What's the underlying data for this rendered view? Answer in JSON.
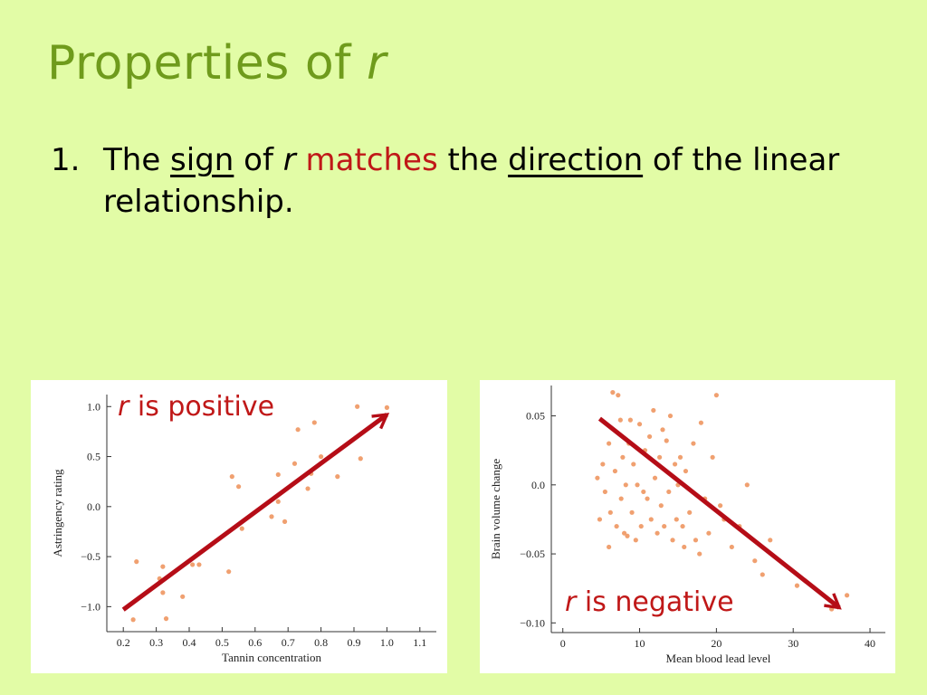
{
  "slide": {
    "title_text": "Properties of ",
    "title_var": "r",
    "bullet_number": "1.",
    "bullet": {
      "t1": "The ",
      "sign": "sign",
      "t2": " of ",
      "r": "r",
      "t3": " ",
      "matches": "matches",
      "t4": " the ",
      "direction": "direction",
      "t5": " of the linear relationship."
    }
  },
  "colors": {
    "background": "#e2fca6",
    "title": "#6f9b1c",
    "accent_red": "#c01818",
    "arrow": "#b50d17",
    "points": "#f0a070"
  },
  "chart_data": [
    {
      "type": "scatter",
      "callout_var": "r",
      "callout_text": " is positive",
      "xlabel": "Tannin concentration",
      "ylabel": "Astringency rating",
      "xlim": [
        0.15,
        1.15
      ],
      "ylim": [
        -1.25,
        1.12
      ],
      "xticks": [
        0.2,
        0.3,
        0.4,
        0.5,
        0.6,
        0.7,
        0.8,
        0.9,
        1.0,
        1.1
      ],
      "xtick_labels": [
        "0.2",
        "0.3",
        "0.4",
        "0.5",
        "0.6",
        "0.7",
        "0.8",
        "0.9",
        "1.0",
        "1.1"
      ],
      "yticks": [
        -1.0,
        -0.5,
        0.0,
        0.5,
        1.0
      ],
      "ytick_labels": [
        "−1.0",
        "−0.5",
        "0.0",
        "0.5",
        "1.0"
      ],
      "grid": false,
      "points": [
        [
          0.23,
          -1.13
        ],
        [
          0.24,
          -0.55
        ],
        [
          0.31,
          -0.72
        ],
        [
          0.32,
          -0.6
        ],
        [
          0.32,
          -0.86
        ],
        [
          0.33,
          -1.12
        ],
        [
          0.38,
          -0.9
        ],
        [
          0.41,
          -0.58
        ],
        [
          0.43,
          -0.58
        ],
        [
          0.52,
          -0.65
        ],
        [
          0.53,
          0.3
        ],
        [
          0.55,
          0.2
        ],
        [
          0.56,
          -0.22
        ],
        [
          0.65,
          -0.1
        ],
        [
          0.67,
          0.05
        ],
        [
          0.67,
          0.32
        ],
        [
          0.69,
          -0.15
        ],
        [
          0.72,
          0.43
        ],
        [
          0.73,
          0.77
        ],
        [
          0.76,
          0.18
        ],
        [
          0.77,
          0.33
        ],
        [
          0.78,
          0.84
        ],
        [
          0.8,
          0.5
        ],
        [
          0.85,
          0.3
        ],
        [
          0.91,
          1.0
        ],
        [
          0.92,
          0.48
        ],
        [
          1.0,
          0.99
        ]
      ],
      "arrow": {
        "from": [
          0.2,
          -1.03
        ],
        "to": [
          1.0,
          0.92
        ]
      }
    },
    {
      "type": "scatter",
      "callout_var": "r",
      "callout_text": " is negative",
      "xlabel": "Mean blood lead level",
      "ylabel": "Brain volume change",
      "xlim": [
        -1.5,
        42
      ],
      "ylim": [
        -0.107,
        0.072
      ],
      "xticks": [
        0,
        10,
        20,
        30,
        40
      ],
      "xtick_labels": [
        "0",
        "10",
        "20",
        "30",
        "40"
      ],
      "yticks": [
        0.05,
        0.0,
        -0.05,
        -0.1
      ],
      "ytick_labels": [
        "0.05",
        "0.0",
        "−0.05",
        "−0.10"
      ],
      "grid": false,
      "points": [
        [
          4.5,
          0.005
        ],
        [
          4.8,
          -0.025
        ],
        [
          5.2,
          0.015
        ],
        [
          5.5,
          -0.005
        ],
        [
          6.0,
          -0.045
        ],
        [
          6.0,
          0.03
        ],
        [
          6.2,
          -0.02
        ],
        [
          6.5,
          0.067
        ],
        [
          6.8,
          0.01
        ],
        [
          7.0,
          -0.03
        ],
        [
          7.2,
          0.065
        ],
        [
          7.5,
          0.047
        ],
        [
          7.6,
          -0.01
        ],
        [
          7.8,
          0.02
        ],
        [
          8.0,
          -0.035
        ],
        [
          8.2,
          0.0
        ],
        [
          8.4,
          -0.037
        ],
        [
          8.6,
          0.03
        ],
        [
          8.8,
          0.047
        ],
        [
          9.0,
          -0.02
        ],
        [
          9.2,
          0.015
        ],
        [
          9.5,
          -0.04
        ],
        [
          9.7,
          0.0
        ],
        [
          10.0,
          0.044
        ],
        [
          10.2,
          -0.03
        ],
        [
          10.5,
          -0.005
        ],
        [
          10.7,
          0.025
        ],
        [
          11.0,
          -0.01
        ],
        [
          11.3,
          0.035
        ],
        [
          11.5,
          -0.025
        ],
        [
          11.8,
          0.054
        ],
        [
          12.0,
          0.005
        ],
        [
          12.3,
          -0.035
        ],
        [
          12.6,
          0.02
        ],
        [
          12.8,
          -0.015
        ],
        [
          13.0,
          0.04
        ],
        [
          13.2,
          -0.03
        ],
        [
          13.5,
          0.032
        ],
        [
          13.8,
          -0.005
        ],
        [
          14.0,
          0.05
        ],
        [
          14.3,
          -0.04
        ],
        [
          14.6,
          0.015
        ],
        [
          14.8,
          -0.025
        ],
        [
          15.0,
          0.0
        ],
        [
          15.3,
          0.02
        ],
        [
          15.6,
          -0.03
        ],
        [
          15.8,
          -0.045
        ],
        [
          16.0,
          0.01
        ],
        [
          16.5,
          -0.02
        ],
        [
          17.0,
          0.03
        ],
        [
          17.3,
          -0.04
        ],
        [
          17.8,
          -0.05
        ],
        [
          18.0,
          0.045
        ],
        [
          18.5,
          -0.01
        ],
        [
          19.0,
          -0.035
        ],
        [
          19.5,
          0.02
        ],
        [
          20.0,
          0.065
        ],
        [
          20.5,
          -0.015
        ],
        [
          21.0,
          -0.025
        ],
        [
          22.0,
          -0.045
        ],
        [
          23.0,
          -0.03
        ],
        [
          24.0,
          0.0
        ],
        [
          25.0,
          -0.055
        ],
        [
          26.0,
          -0.065
        ],
        [
          27.0,
          -0.04
        ],
        [
          30.5,
          -0.073
        ],
        [
          35.0,
          -0.09
        ],
        [
          37.0,
          -0.08
        ]
      ],
      "arrow": {
        "from": [
          4.8,
          0.048
        ],
        "to": [
          36.0,
          -0.089
        ]
      }
    }
  ]
}
